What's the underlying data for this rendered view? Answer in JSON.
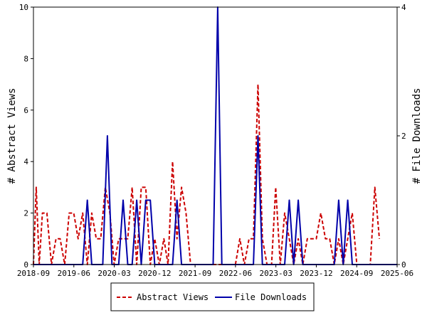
{
  "chart_data": {
    "type": "line",
    "xlabel": "",
    "ylabel_left": "# Abstract Views",
    "ylabel_right": "# File Downloads",
    "ylim_left": [
      0,
      10
    ],
    "ylim_right": [
      0,
      4
    ],
    "yticks_left": [
      0,
      2,
      4,
      6,
      8,
      10
    ],
    "yticks_right": [
      0,
      2,
      4
    ],
    "x_tick_labels": [
      "2018-09",
      "2019-06",
      "2020-03",
      "2020-12",
      "2021-09",
      "2022-06",
      "2023-03",
      "2023-12",
      "2024-09",
      "2025-06"
    ],
    "x_start": "2018-09",
    "x_end": "2025-06",
    "legend_position": "bottom-center",
    "grid": false,
    "series": [
      {
        "name": "Abstract Views",
        "axis": "left",
        "color": "#cc0000",
        "style": "dashed",
        "points": [
          [
            "2018-09-01",
            0
          ],
          [
            "2018-09-20",
            3
          ],
          [
            "2018-10-10",
            0
          ],
          [
            "2018-11-01",
            2
          ],
          [
            "2018-12-01",
            2
          ],
          [
            "2019-01-01",
            0
          ],
          [
            "2019-02-01",
            1
          ],
          [
            "2019-03-01",
            1
          ],
          [
            "2019-04-01",
            0
          ],
          [
            "2019-05-01",
            2
          ],
          [
            "2019-06-01",
            2
          ],
          [
            "2019-07-01",
            1
          ],
          [
            "2019-08-01",
            2
          ],
          [
            "2019-09-01",
            0
          ],
          [
            "2019-10-01",
            2
          ],
          [
            "2019-11-01",
            1
          ],
          [
            "2019-12-01",
            1
          ],
          [
            "2020-01-01",
            3
          ],
          [
            "2020-02-01",
            2
          ],
          [
            "2020-03-01",
            0
          ],
          [
            "2020-04-01",
            1
          ],
          [
            "2020-05-01",
            1
          ],
          [
            "2020-06-01",
            1
          ],
          [
            "2020-07-01",
            3
          ],
          [
            "2020-08-01",
            0
          ],
          [
            "2020-09-01",
            3
          ],
          [
            "2020-10-01",
            3
          ],
          [
            "2020-11-01",
            0
          ],
          [
            "2020-12-01",
            1
          ],
          [
            "2021-01-01",
            0
          ],
          [
            "2021-02-01",
            1
          ],
          [
            "2021-03-01",
            0
          ],
          [
            "2021-04-01",
            4
          ],
          [
            "2021-05-01",
            1
          ],
          [
            "2021-06-01",
            3
          ],
          [
            "2021-07-01",
            2
          ],
          [
            "2021-08-01",
            0
          ],
          [
            "2021-09-01",
            0
          ],
          [
            "2021-10-01",
            0
          ],
          [
            "2021-11-01",
            0
          ],
          [
            "2021-12-01",
            0
          ],
          [
            "2022-01-01",
            0
          ],
          [
            "2022-02-01",
            0
          ],
          [
            "2022-03-01",
            0
          ],
          [
            "2022-04-01",
            0
          ],
          [
            "2022-05-01",
            0
          ],
          [
            "2022-06-01",
            0
          ],
          [
            "2022-07-01",
            1
          ],
          [
            "2022-08-01",
            0
          ],
          [
            "2022-09-01",
            1
          ],
          [
            "2022-10-01",
            1
          ],
          [
            "2022-11-01",
            7
          ],
          [
            "2022-12-01",
            1
          ],
          [
            "2023-01-01",
            0
          ],
          [
            "2023-02-01",
            0
          ],
          [
            "2023-03-01",
            3
          ],
          [
            "2023-04-01",
            0
          ],
          [
            "2023-05-01",
            2
          ],
          [
            "2023-06-01",
            1
          ],
          [
            "2023-07-01",
            0
          ],
          [
            "2023-08-01",
            1
          ],
          [
            "2023-09-01",
            0
          ],
          [
            "2023-10-01",
            1
          ],
          [
            "2023-11-01",
            1
          ],
          [
            "2023-12-01",
            1
          ],
          [
            "2024-01-01",
            2
          ],
          [
            "2024-02-01",
            1
          ],
          [
            "2024-03-01",
            1
          ],
          [
            "2024-04-01",
            0
          ],
          [
            "2024-05-01",
            1
          ],
          [
            "2024-06-01",
            0
          ],
          [
            "2024-07-01",
            1
          ],
          [
            "2024-08-01",
            2
          ],
          [
            "2024-09-01",
            0
          ],
          [
            "2024-10-01",
            0
          ],
          [
            "2024-11-01",
            0
          ],
          [
            "2024-12-01",
            0
          ],
          [
            "2025-01-01",
            3
          ],
          [
            "2025-02-01",
            1
          ]
        ]
      },
      {
        "name": "File Downloads",
        "axis": "right",
        "color": "#0000aa",
        "style": "solid",
        "points": [
          [
            "2018-09-01",
            0
          ],
          [
            "2019-08-01",
            0
          ],
          [
            "2019-09-01",
            1
          ],
          [
            "2019-10-01",
            0
          ],
          [
            "2019-12-15",
            0
          ],
          [
            "2020-01-15",
            2
          ],
          [
            "2020-02-15",
            0
          ],
          [
            "2020-04-01",
            0
          ],
          [
            "2020-05-01",
            1
          ],
          [
            "2020-06-01",
            0
          ],
          [
            "2020-07-01",
            0
          ],
          [
            "2020-08-01",
            1
          ],
          [
            "2020-09-01",
            0
          ],
          [
            "2020-10-01",
            1
          ],
          [
            "2020-11-01",
            1
          ],
          [
            "2020-12-01",
            0
          ],
          [
            "2021-04-01",
            0
          ],
          [
            "2021-05-01",
            1
          ],
          [
            "2021-06-01",
            0
          ],
          [
            "2022-01-01",
            0
          ],
          [
            "2022-02-01",
            4
          ],
          [
            "2022-03-01",
            0
          ],
          [
            "2022-10-01",
            0
          ],
          [
            "2022-11-01",
            2
          ],
          [
            "2022-12-01",
            0
          ],
          [
            "2023-05-01",
            0
          ],
          [
            "2023-06-01",
            1
          ],
          [
            "2023-07-01",
            0
          ],
          [
            "2023-08-01",
            1
          ],
          [
            "2023-09-01",
            0
          ],
          [
            "2024-04-01",
            0
          ],
          [
            "2024-05-01",
            1
          ],
          [
            "2024-06-01",
            0
          ],
          [
            "2024-07-01",
            1
          ],
          [
            "2024-08-01",
            0
          ],
          [
            "2025-06-01",
            0
          ]
        ]
      }
    ]
  }
}
